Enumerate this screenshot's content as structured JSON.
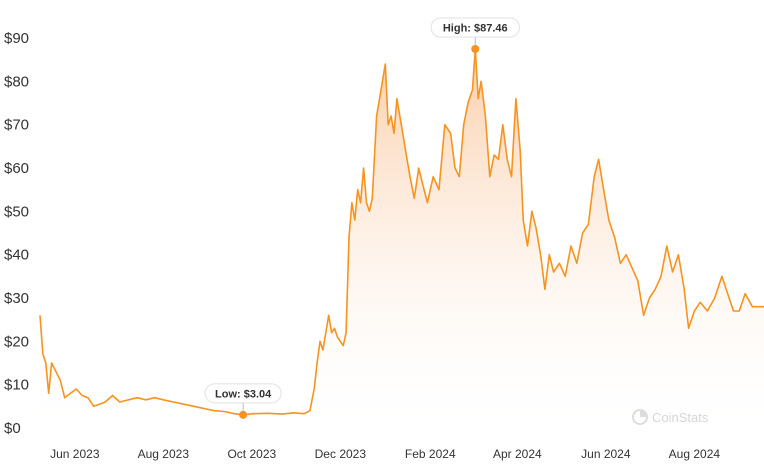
{
  "watermark": "CoinStats",
  "colors": {
    "line": "#f7931e",
    "area_top": "#f9c59a",
    "area_bottom": "#ffffff"
  },
  "chart_data": {
    "type": "area",
    "title": "",
    "xlabel": "",
    "ylabel": "",
    "ylim": [
      0,
      90
    ],
    "grid": false,
    "y_tick_labels": [
      "$0",
      "$10",
      "$20",
      "$30",
      "$40",
      "$50",
      "$60",
      "$70",
      "$80",
      "$90"
    ],
    "y_ticks": [
      0,
      10,
      20,
      30,
      40,
      50,
      60,
      70,
      80,
      90
    ],
    "x_tick_labels": [
      "Jun 2023",
      "Aug 2023",
      "Oct 2023",
      "Dec 2023",
      "Feb 2024",
      "Apr 2024",
      "Jun 2024",
      "Aug 2024"
    ],
    "x_ticks": [
      "2023-06-01",
      "2023-08-01",
      "2023-10-01",
      "2023-12-01",
      "2024-02-01",
      "2024-04-01",
      "2024-06-01",
      "2024-08-01"
    ],
    "x_range": [
      "2023-05-08",
      "2024-09-18"
    ],
    "series": [
      {
        "points": [
          [
            "2023-05-08",
            26
          ],
          [
            "2023-05-10",
            17
          ],
          [
            "2023-05-12",
            15
          ],
          [
            "2023-05-14",
            8
          ],
          [
            "2023-05-16",
            15
          ],
          [
            "2023-05-19",
            13
          ],
          [
            "2023-05-22",
            11
          ],
          [
            "2023-05-25",
            7
          ],
          [
            "2023-05-29",
            8
          ],
          [
            "2023-06-02",
            9
          ],
          [
            "2023-06-06",
            7.5
          ],
          [
            "2023-06-10",
            7
          ],
          [
            "2023-06-14",
            5
          ],
          [
            "2023-06-18",
            5.5
          ],
          [
            "2023-06-22",
            6
          ],
          [
            "2023-06-27",
            7.5
          ],
          [
            "2023-07-02",
            6
          ],
          [
            "2023-07-08",
            6.5
          ],
          [
            "2023-07-14",
            7
          ],
          [
            "2023-07-20",
            6.5
          ],
          [
            "2023-07-26",
            7
          ],
          [
            "2023-08-01",
            6.5
          ],
          [
            "2023-08-08",
            6
          ],
          [
            "2023-08-15",
            5.5
          ],
          [
            "2023-08-22",
            5
          ],
          [
            "2023-08-29",
            4.5
          ],
          [
            "2023-09-05",
            4
          ],
          [
            "2023-09-12",
            3.8
          ],
          [
            "2023-09-19",
            3.3
          ],
          [
            "2023-09-25",
            3.04
          ],
          [
            "2023-10-02",
            3.3
          ],
          [
            "2023-10-12",
            3.4
          ],
          [
            "2023-10-22",
            3.2
          ],
          [
            "2023-10-30",
            3.5
          ],
          [
            "2023-11-06",
            3.3
          ],
          [
            "2023-11-10",
            4
          ],
          [
            "2023-11-13",
            9
          ],
          [
            "2023-11-15",
            15
          ],
          [
            "2023-11-17",
            20
          ],
          [
            "2023-11-19",
            18
          ],
          [
            "2023-11-21",
            22
          ],
          [
            "2023-11-23",
            26
          ],
          [
            "2023-11-25",
            22
          ],
          [
            "2023-11-27",
            23
          ],
          [
            "2023-11-29",
            21
          ],
          [
            "2023-12-01",
            20
          ],
          [
            "2023-12-03",
            19
          ],
          [
            "2023-12-05",
            22
          ],
          [
            "2023-12-07",
            44
          ],
          [
            "2023-12-09",
            52
          ],
          [
            "2023-12-11",
            48
          ],
          [
            "2023-12-13",
            55
          ],
          [
            "2023-12-15",
            52
          ],
          [
            "2023-12-17",
            60
          ],
          [
            "2023-12-19",
            52
          ],
          [
            "2023-12-21",
            50
          ],
          [
            "2023-12-23",
            53
          ],
          [
            "2023-12-26",
            72
          ],
          [
            "2023-12-29",
            78
          ],
          [
            "2024-01-01",
            84
          ],
          [
            "2024-01-03",
            70
          ],
          [
            "2024-01-05",
            72
          ],
          [
            "2024-01-07",
            68
          ],
          [
            "2024-01-09",
            76
          ],
          [
            "2024-01-12",
            70
          ],
          [
            "2024-01-15",
            64
          ],
          [
            "2024-01-18",
            58
          ],
          [
            "2024-01-21",
            53
          ],
          [
            "2024-01-24",
            60
          ],
          [
            "2024-01-27",
            56
          ],
          [
            "2024-01-30",
            52
          ],
          [
            "2024-02-03",
            58
          ],
          [
            "2024-02-07",
            55
          ],
          [
            "2024-02-11",
            70
          ],
          [
            "2024-02-15",
            68
          ],
          [
            "2024-02-18",
            60
          ],
          [
            "2024-02-21",
            58
          ],
          [
            "2024-02-24",
            70
          ],
          [
            "2024-02-27",
            75
          ],
          [
            "2024-03-01",
            78
          ],
          [
            "2024-03-03",
            87.46
          ],
          [
            "2024-03-05",
            76
          ],
          [
            "2024-03-07",
            80
          ],
          [
            "2024-03-10",
            72
          ],
          [
            "2024-03-13",
            58
          ],
          [
            "2024-03-16",
            63
          ],
          [
            "2024-03-19",
            62
          ],
          [
            "2024-03-22",
            70
          ],
          [
            "2024-03-25",
            62
          ],
          [
            "2024-03-28",
            58
          ],
          [
            "2024-03-31",
            76
          ],
          [
            "2024-04-03",
            64
          ],
          [
            "2024-04-05",
            48
          ],
          [
            "2024-04-08",
            42
          ],
          [
            "2024-04-11",
            50
          ],
          [
            "2024-04-14",
            46
          ],
          [
            "2024-04-17",
            40
          ],
          [
            "2024-04-20",
            32
          ],
          [
            "2024-04-23",
            40
          ],
          [
            "2024-04-26",
            36
          ],
          [
            "2024-04-30",
            38
          ],
          [
            "2024-05-04",
            35
          ],
          [
            "2024-05-08",
            42
          ],
          [
            "2024-05-12",
            38
          ],
          [
            "2024-05-16",
            45
          ],
          [
            "2024-05-20",
            47
          ],
          [
            "2024-05-24",
            58
          ],
          [
            "2024-05-27",
            62
          ],
          [
            "2024-05-30",
            56
          ],
          [
            "2024-06-03",
            48
          ],
          [
            "2024-06-07",
            44
          ],
          [
            "2024-06-11",
            38
          ],
          [
            "2024-06-15",
            40
          ],
          [
            "2024-06-19",
            37
          ],
          [
            "2024-06-23",
            34
          ],
          [
            "2024-06-27",
            26
          ],
          [
            "2024-07-01",
            30
          ],
          [
            "2024-07-05",
            32
          ],
          [
            "2024-07-09",
            35
          ],
          [
            "2024-07-13",
            42
          ],
          [
            "2024-07-17",
            36
          ],
          [
            "2024-07-21",
            40
          ],
          [
            "2024-07-25",
            32
          ],
          [
            "2024-07-28",
            23
          ],
          [
            "2024-08-01",
            27
          ],
          [
            "2024-08-05",
            29
          ],
          [
            "2024-08-10",
            27
          ],
          [
            "2024-08-15",
            30
          ],
          [
            "2024-08-20",
            35
          ],
          [
            "2024-08-24",
            31
          ],
          [
            "2024-08-28",
            27
          ],
          [
            "2024-09-01",
            27
          ],
          [
            "2024-09-05",
            31
          ],
          [
            "2024-09-10",
            28
          ],
          [
            "2024-09-18",
            28
          ]
        ]
      }
    ],
    "annotations": [
      {
        "label": "High: $87.46",
        "x": "2024-03-03",
        "y": 87.46,
        "position": "above"
      },
      {
        "label": "Low: $3.04",
        "x": "2023-09-25",
        "y": 3.04,
        "position": "above"
      }
    ]
  }
}
